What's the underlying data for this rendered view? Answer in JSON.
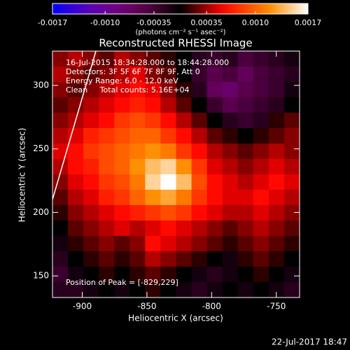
{
  "chart_data": {
    "type": "heatmap",
    "title": "Reconstructed RHESSI Image",
    "colorbar_label": "(photons cm⁻² s⁻¹ asec⁻²)",
    "clim": [
      -0.0017,
      0.0017
    ],
    "cticks": [
      -0.0017,
      {
        "value": -0.001,
        "label": "-0.0010"
      },
      -0.00035,
      0.00035,
      {
        "value": 0.001,
        "label": "0.0010"
      },
      0.0017
    ],
    "x_label": "Heliocentric X (arcsec)",
    "y_label": "Heliocentric Y (arcsec)",
    "xlim": [
      -923,
      -732
    ],
    "ylim": [
      133,
      327
    ],
    "xticks": [
      -900,
      -850,
      -800,
      -750
    ],
    "yticks": [
      150,
      200,
      250,
      300
    ],
    "annotations": [
      "16-Jul-2015 18:34:28.000 to 18:44:28.000",
      "Detectors: 3F 5F 6F 7F 8F 9F, Att 0",
      "Energy Range: 6.0 - 12.0 keV",
      "Clean     Total counts: 5.16E+04"
    ],
    "peak_label": "Position of Peak = [-829,229]",
    "timestamp": "22-Jul-2017 18:47",
    "z": [
      [
        0.0003,
        0.0004,
        0.0003,
        0.0002,
        0.0004,
        0.0003,
        0.0002,
        0.0001,
        0,
        -0.0002,
        -0.0003,
        -0.0002,
        -0.0004,
        -0.0003,
        -0.0002,
        -0.0001
      ],
      [
        0.0004,
        0.0003,
        0.0002,
        0.0003,
        0.0004,
        0.0005,
        0.0003,
        0.0002,
        0,
        -0.0003,
        -0.0005,
        -0.0004,
        -0.0006,
        -0.0004,
        -0.0003,
        -0.0002
      ],
      [
        0.0003,
        0.0002,
        0.0003,
        0.0004,
        0.0005,
        0.0006,
        0.0005,
        0.0003,
        0.0001,
        -0.0002,
        -0.0006,
        -0.0007,
        -0.0005,
        -0.0004,
        -0.0003,
        -0.0001
      ],
      [
        0.0002,
        0.0003,
        0.0004,
        0.0005,
        0.0006,
        0.0007,
        0.0006,
        0.0004,
        0.0002,
        0,
        -0.0003,
        -0.0005,
        -0.0004,
        -0.0003,
        -0.0002,
        0
      ],
      [
        0.0003,
        0.0004,
        0.0005,
        0.0006,
        0.0008,
        0.0009,
        0.0008,
        0.0006,
        0.0004,
        0.0002,
        0,
        -0.0002,
        -0.0003,
        -0.0002,
        0.0001,
        0.0002
      ],
      [
        0.0004,
        0.0005,
        0.0007,
        0.0008,
        0.0009,
        0.001,
        0.001,
        0.0008,
        0.0006,
        0.0004,
        0.0002,
        0.0001,
        0,
        0.0001,
        0.0002,
        0.0003
      ],
      [
        0.0005,
        0.0006,
        0.0008,
        0.0009,
        0.001,
        0.0011,
        0.0012,
        0.0011,
        0.0008,
        0.0006,
        0.0004,
        0.0003,
        0.0002,
        0.0003,
        0.0004,
        0.0003
      ],
      [
        0.0004,
        0.0006,
        0.0007,
        0.0009,
        0.001,
        0.0012,
        0.0014,
        0.0015,
        0.0012,
        0.0008,
        0.0005,
        0.0004,
        0.0003,
        0.0004,
        0.0005,
        0.0004
      ],
      [
        0.0003,
        0.0005,
        0.0006,
        0.0008,
        0.0009,
        0.0011,
        0.0015,
        0.0017,
        0.0014,
        0.0009,
        0.0006,
        0.0005,
        0.0004,
        0.0005,
        0.0006,
        0.0005
      ],
      [
        0.0002,
        0.0004,
        0.0005,
        0.0007,
        0.0008,
        0.001,
        0.0012,
        0.0013,
        0.0011,
        0.0008,
        0.0006,
        0.0005,
        0.0005,
        0.0006,
        0.0005,
        0.0004
      ],
      [
        0.0001,
        0.0003,
        0.0004,
        0.0005,
        0.0006,
        0.0007,
        0.0008,
        0.0009,
        0.0008,
        0.0006,
        0.0005,
        0.0004,
        0.0004,
        0.0005,
        0.0004,
        0.0003
      ],
      [
        0,
        0.0002,
        0.0003,
        0.0004,
        0.0005,
        0.0004,
        0.0005,
        0.0006,
        0.0005,
        0.0004,
        0.0003,
        0.0002,
        0.0003,
        0.0004,
        0.0003,
        0.0002
      ],
      [
        -0.0001,
        0.0001,
        0.0002,
        0.0003,
        0.0002,
        0.0003,
        0.0006,
        0.0005,
        0.0004,
        0.0003,
        0.0002,
        0.0001,
        0.0002,
        0.0003,
        0.0002,
        0.0001
      ],
      [
        -0.0002,
        0,
        0.0001,
        0.0002,
        0.0001,
        0.0002,
        0.0004,
        0.0003,
        0.0002,
        0.0001,
        0,
        -0.0001,
        0.0001,
        0.0002,
        0.0001,
        0
      ],
      [
        -0.0003,
        -0.0001,
        0,
        0.0001,
        0,
        0.0001,
        0.0002,
        0.0001,
        0,
        -0.0001,
        -0.0002,
        -0.0001,
        0,
        0.0001,
        0,
        -0.0001
      ],
      [
        -0.0002,
        -0.0002,
        -0.0001,
        0,
        -0.0001,
        0,
        0.0001,
        0,
        -0.0001,
        -0.0002,
        -0.0001,
        0,
        -0.0001,
        0,
        -0.0001,
        -0.0002
      ]
    ]
  }
}
